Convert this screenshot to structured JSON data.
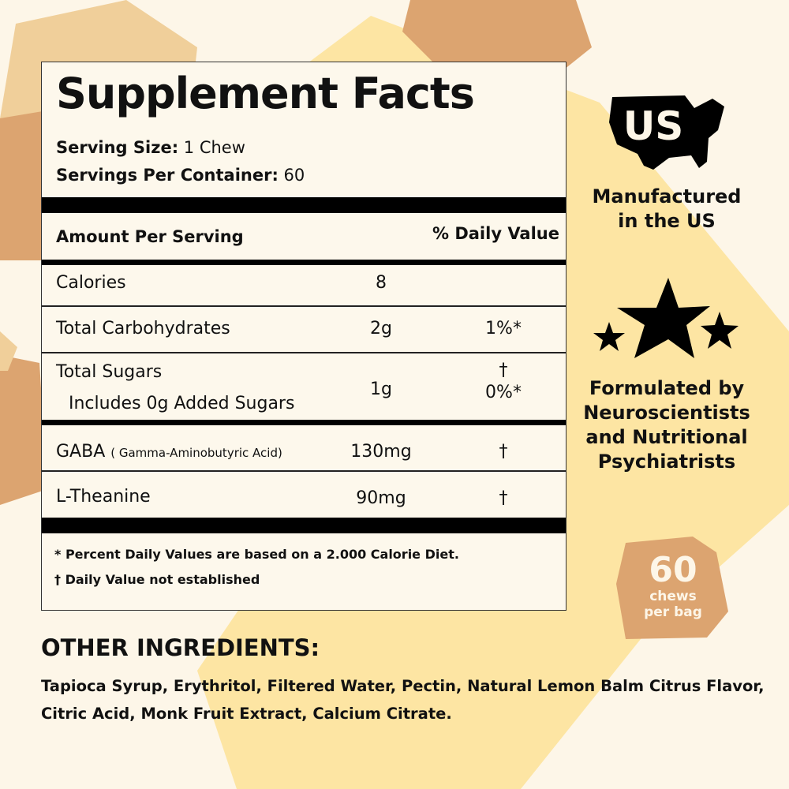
{
  "colors": {
    "background": "#fdf6e8",
    "yellow": "#fde5a3",
    "tan": "#dca470",
    "light_tan": "#f0cf9a"
  },
  "facts": {
    "title": "Supplement Facts",
    "serving_size_label": "Serving Size:",
    "serving_size": "1 Chew",
    "servings_label": "Servings Per Container:",
    "servings": "60",
    "header_amount": "Amount Per Serving",
    "header_dv": "% Daily Value",
    "rows": [
      {
        "name": "Calories",
        "amount": "8",
        "dv": ""
      },
      {
        "name": "Total Carbohydrates",
        "amount": "2g",
        "dv": "1%*"
      },
      {
        "name": "Total Sugars",
        "sub": "Includes 0g Added Sugars",
        "amount": "1g",
        "dv": "†",
        "dv2": "0%*"
      },
      {
        "name": "GABA",
        "note": "( Gamma-Aminobutyric Acid)",
        "amount": "130mg",
        "dv": "†"
      },
      {
        "name": "L-Theanine",
        "amount": "90mg",
        "dv": "†"
      }
    ],
    "footnote1": "* Percent Daily Values are based on a 2.000 Calorie Diet.",
    "footnote2": "† Daily Value not established"
  },
  "badges": {
    "us_icon_text": "US",
    "manufactured": [
      "Manufactured",
      "in the US"
    ],
    "formulated": [
      "Formulated by",
      "Neuroscientists",
      "and Nutritional",
      "Psychiatrists"
    ],
    "count": "60",
    "count_line1": "chews",
    "count_line2": "per bag"
  },
  "ingredients": {
    "heading": "OTHER INGREDIENTS:",
    "text": "Tapioca Syrup, Erythritol, Filtered Water, Pectin, Natural Lemon Balm Citrus Flavor, Citric Acid, Monk Fruit Extract, Calcium Citrate."
  }
}
